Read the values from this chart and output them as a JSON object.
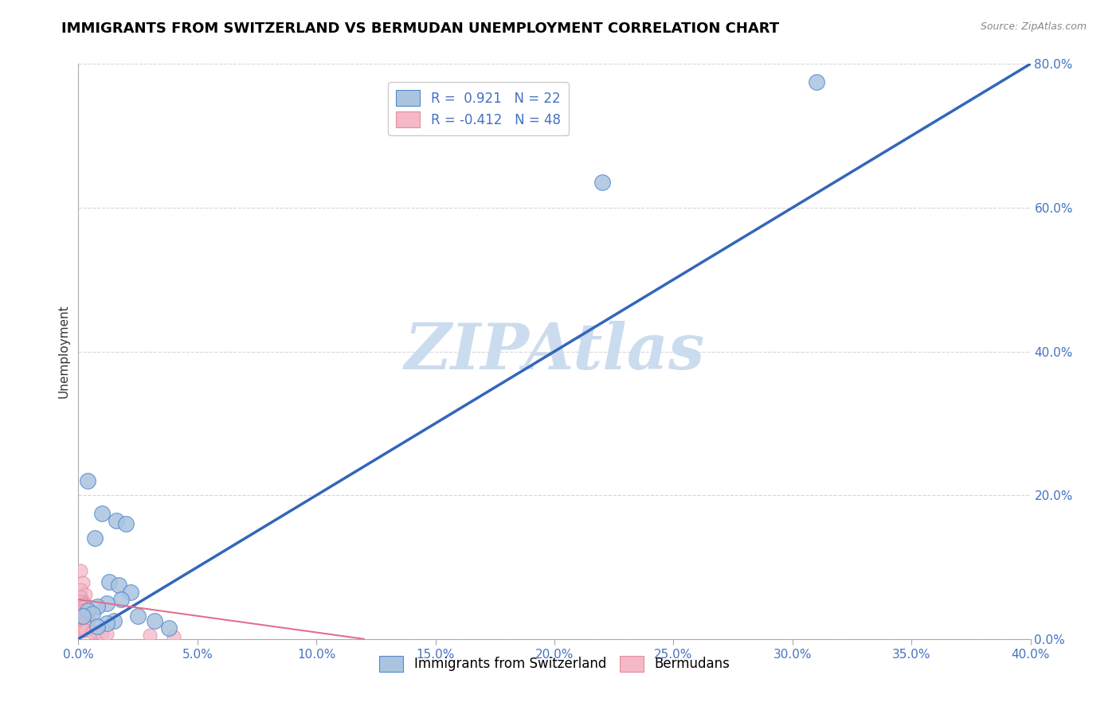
{
  "title": "IMMIGRANTS FROM SWITZERLAND VS BERMUDAN UNEMPLOYMENT CORRELATION CHART",
  "source": "Source: ZipAtlas.com",
  "ylabel": "Unemployment",
  "xlim": [
    0.0,
    0.4
  ],
  "ylim": [
    0.0,
    0.8
  ],
  "xticks": [
    0.0,
    0.05,
    0.1,
    0.15,
    0.2,
    0.25,
    0.3,
    0.35,
    0.4
  ],
  "yticks": [
    0.0,
    0.2,
    0.4,
    0.6,
    0.8
  ],
  "blue_R": 0.921,
  "blue_N": 22,
  "pink_R": -0.412,
  "pink_N": 48,
  "blue_color": "#aac4e0",
  "blue_edge_color": "#5588cc",
  "blue_line_color": "#3366bb",
  "pink_color": "#f4b8c8",
  "pink_edge_color": "#e090a0",
  "pink_line_color": "#e07090",
  "blue_scatter": [
    [
      0.004,
      0.22
    ],
    [
      0.01,
      0.175
    ],
    [
      0.016,
      0.165
    ],
    [
      0.02,
      0.16
    ],
    [
      0.007,
      0.14
    ],
    [
      0.013,
      0.08
    ],
    [
      0.017,
      0.075
    ],
    [
      0.022,
      0.065
    ],
    [
      0.018,
      0.055
    ],
    [
      0.012,
      0.05
    ],
    [
      0.008,
      0.045
    ],
    [
      0.004,
      0.04
    ],
    [
      0.006,
      0.035
    ],
    [
      0.002,
      0.032
    ],
    [
      0.025,
      0.032
    ],
    [
      0.032,
      0.025
    ],
    [
      0.015,
      0.025
    ],
    [
      0.012,
      0.022
    ],
    [
      0.008,
      0.018
    ],
    [
      0.038,
      0.015
    ],
    [
      0.22,
      0.635
    ],
    [
      0.31,
      0.775
    ]
  ],
  "pink_scatter": [
    [
      0.001,
      0.095
    ],
    [
      0.002,
      0.078
    ],
    [
      0.001,
      0.068
    ],
    [
      0.003,
      0.062
    ],
    [
      0.001,
      0.058
    ],
    [
      0.002,
      0.052
    ],
    [
      0.001,
      0.052
    ],
    [
      0.003,
      0.048
    ],
    [
      0.002,
      0.048
    ],
    [
      0.004,
      0.044
    ],
    [
      0.001,
      0.044
    ],
    [
      0.002,
      0.044
    ],
    [
      0.003,
      0.04
    ],
    [
      0.001,
      0.04
    ],
    [
      0.002,
      0.04
    ],
    [
      0.004,
      0.038
    ],
    [
      0.001,
      0.035
    ],
    [
      0.002,
      0.035
    ],
    [
      0.003,
      0.035
    ],
    [
      0.001,
      0.03
    ],
    [
      0.002,
      0.03
    ],
    [
      0.003,
      0.03
    ],
    [
      0.004,
      0.03
    ],
    [
      0.001,
      0.026
    ],
    [
      0.002,
      0.026
    ],
    [
      0.003,
      0.026
    ],
    [
      0.004,
      0.026
    ],
    [
      0.001,
      0.022
    ],
    [
      0.002,
      0.022
    ],
    [
      0.003,
      0.022
    ],
    [
      0.001,
      0.018
    ],
    [
      0.002,
      0.018
    ],
    [
      0.003,
      0.018
    ],
    [
      0.004,
      0.018
    ],
    [
      0.001,
      0.015
    ],
    [
      0.002,
      0.015
    ],
    [
      0.003,
      0.015
    ],
    [
      0.004,
      0.015
    ],
    [
      0.005,
      0.015
    ],
    [
      0.001,
      0.012
    ],
    [
      0.002,
      0.012
    ],
    [
      0.003,
      0.012
    ],
    [
      0.006,
      0.01
    ],
    [
      0.008,
      0.01
    ],
    [
      0.01,
      0.008
    ],
    [
      0.012,
      0.007
    ],
    [
      0.03,
      0.005
    ],
    [
      0.04,
      0.003
    ]
  ],
  "watermark": "ZIPAtlas",
  "watermark_color": "#ccdcef",
  "grid_color": "#cccccc",
  "background_color": "#ffffff",
  "title_fontsize": 13,
  "tick_color": "#4472c4",
  "ylabel_color": "#333333"
}
